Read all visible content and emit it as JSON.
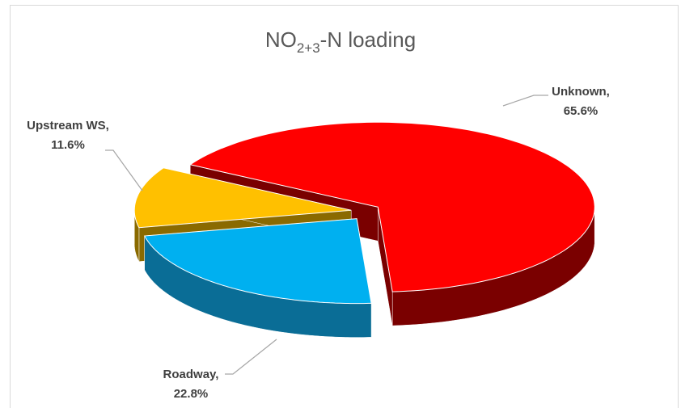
{
  "chart_data": {
    "type": "pie3d",
    "title": [
      "NO",
      "2+3",
      "-N loading"
    ],
    "categories": [
      "Unknown,",
      "Roadway,",
      "Upstream WS,"
    ],
    "values": [
      65.6,
      22.8,
      11.6
    ],
    "value_labels": [
      "65.6%",
      "22.8%",
      "11.6%"
    ],
    "colors": [
      "#ff0000",
      "#00b0f0",
      "#ffc000"
    ],
    "side_colors": [
      "#7a0000",
      "#0a6d96",
      "#8a6a00"
    ]
  }
}
